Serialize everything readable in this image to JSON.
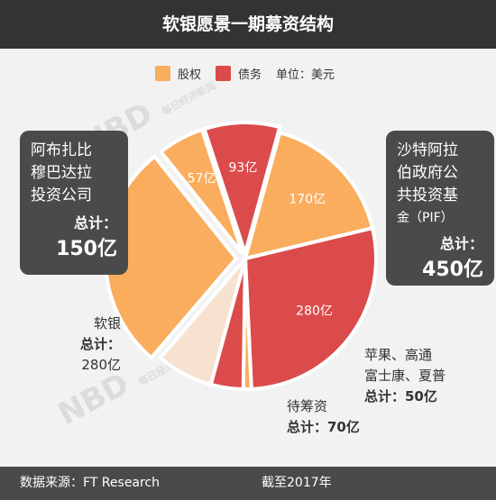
{
  "title": "软银愿景一期募资结构",
  "legend": {
    "equity": "股权",
    "debt": "债务",
    "unit": "单位：美元"
  },
  "colors": {
    "equity": "#f9ad5d",
    "debt": "#db4b4b",
    "pending": "#f7e2cf",
    "header_bg": "#333333"
  },
  "chart_data": {
    "type": "pie",
    "unit": "亿美元",
    "slices": [
      {
        "investor": "沙特阿拉伯政府公共投资基金（PIF）",
        "kind": "股权",
        "value": 170,
        "label": "170亿",
        "color": "#f9ad5d"
      },
      {
        "investor": "沙特阿拉伯政府公共投资基金（PIF）",
        "kind": "债务",
        "value": 280,
        "label": "280亿",
        "color": "#db4b4b"
      },
      {
        "investor": "苹果、高通、富士康、夏普",
        "kind": "股权",
        "value": 10,
        "label": "",
        "color": "#f9ad5d"
      },
      {
        "investor": "苹果、高通、富士康、夏普",
        "kind": "债务",
        "value": 40,
        "label": "",
        "color": "#db4b4b"
      },
      {
        "investor": "待筹资",
        "kind": "",
        "value": 70,
        "label": "",
        "color": "#f7e2cf"
      },
      {
        "investor": "软银",
        "kind": "股权",
        "value": 280,
        "label": "",
        "color": "#f9ad5d"
      },
      {
        "investor": "阿布扎比穆巴达拉投资公司",
        "kind": "股权",
        "value": 57,
        "label": "57亿",
        "color": "#f9ad5d"
      },
      {
        "investor": "阿布扎比穆巴达拉投资公司",
        "kind": "债务",
        "value": 93,
        "label": "93亿",
        "color": "#db4b4b"
      }
    ],
    "totals": [
      {
        "investor": "阿布扎比穆巴达拉投资公司",
        "total": 150
      },
      {
        "investor": "沙特阿拉伯政府公共投资基金（PIF）",
        "total": 450
      },
      {
        "investor": "软银",
        "total": 280
      },
      {
        "investor": "苹果、高通、富士康、夏普",
        "total": 50
      },
      {
        "investor": "待筹资",
        "total": 70
      }
    ]
  },
  "boxes": {
    "mubadala": {
      "lines": [
        "阿布扎比",
        "穆巴达拉",
        "投资公司"
      ],
      "total_label": "总计：",
      "total_value": "150亿"
    },
    "pif": {
      "lines": [
        "沙特阿拉",
        "伯政府公",
        "共投资基",
        "金（PIF）"
      ],
      "total_label": "总计：",
      "total_value": "450亿"
    }
  },
  "labels": {
    "softbank": {
      "name": "软银",
      "total_label": "总计：",
      "total_value": "280亿"
    },
    "tech": {
      "name1": "苹果、高通",
      "name2": "富士康、夏普",
      "total": "总计：50亿"
    },
    "pending": {
      "name": "待筹资",
      "total": "总计：70亿"
    }
  },
  "watermark": {
    "text": "NBD",
    "sub": "每日经济新闻"
  },
  "footer": {
    "source": "数据来源：FT Research",
    "date": "截至2017年"
  }
}
